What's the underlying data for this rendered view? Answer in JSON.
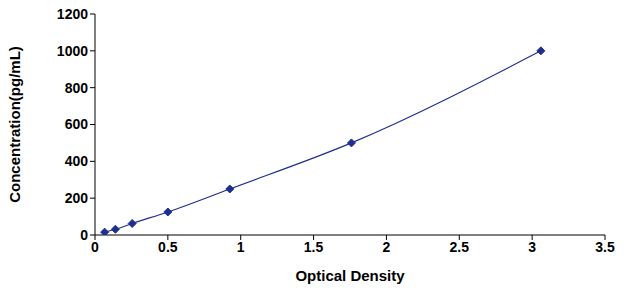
{
  "chart_data": {
    "type": "line",
    "x_label": "Optical Density",
    "y_label": "Concentration(pg/mL)",
    "x": [
      0.066,
      0.14,
      0.255,
      0.5,
      0.925,
      1.76,
      3.06
    ],
    "values": [
      15.6,
      31.2,
      62.5,
      125,
      250,
      500,
      1000
    ],
    "color": "#1f2f8f",
    "marker": "diamond",
    "line_style": "solid",
    "xlim": [
      0,
      3.5
    ],
    "xticks": [
      0,
      0.5,
      1,
      1.5,
      2,
      2.5,
      3,
      3.5
    ],
    "ylim": [
      0,
      1200
    ],
    "yticks": [
      0,
      200,
      400,
      600,
      800,
      1000,
      1200
    ],
    "grid": false
  }
}
